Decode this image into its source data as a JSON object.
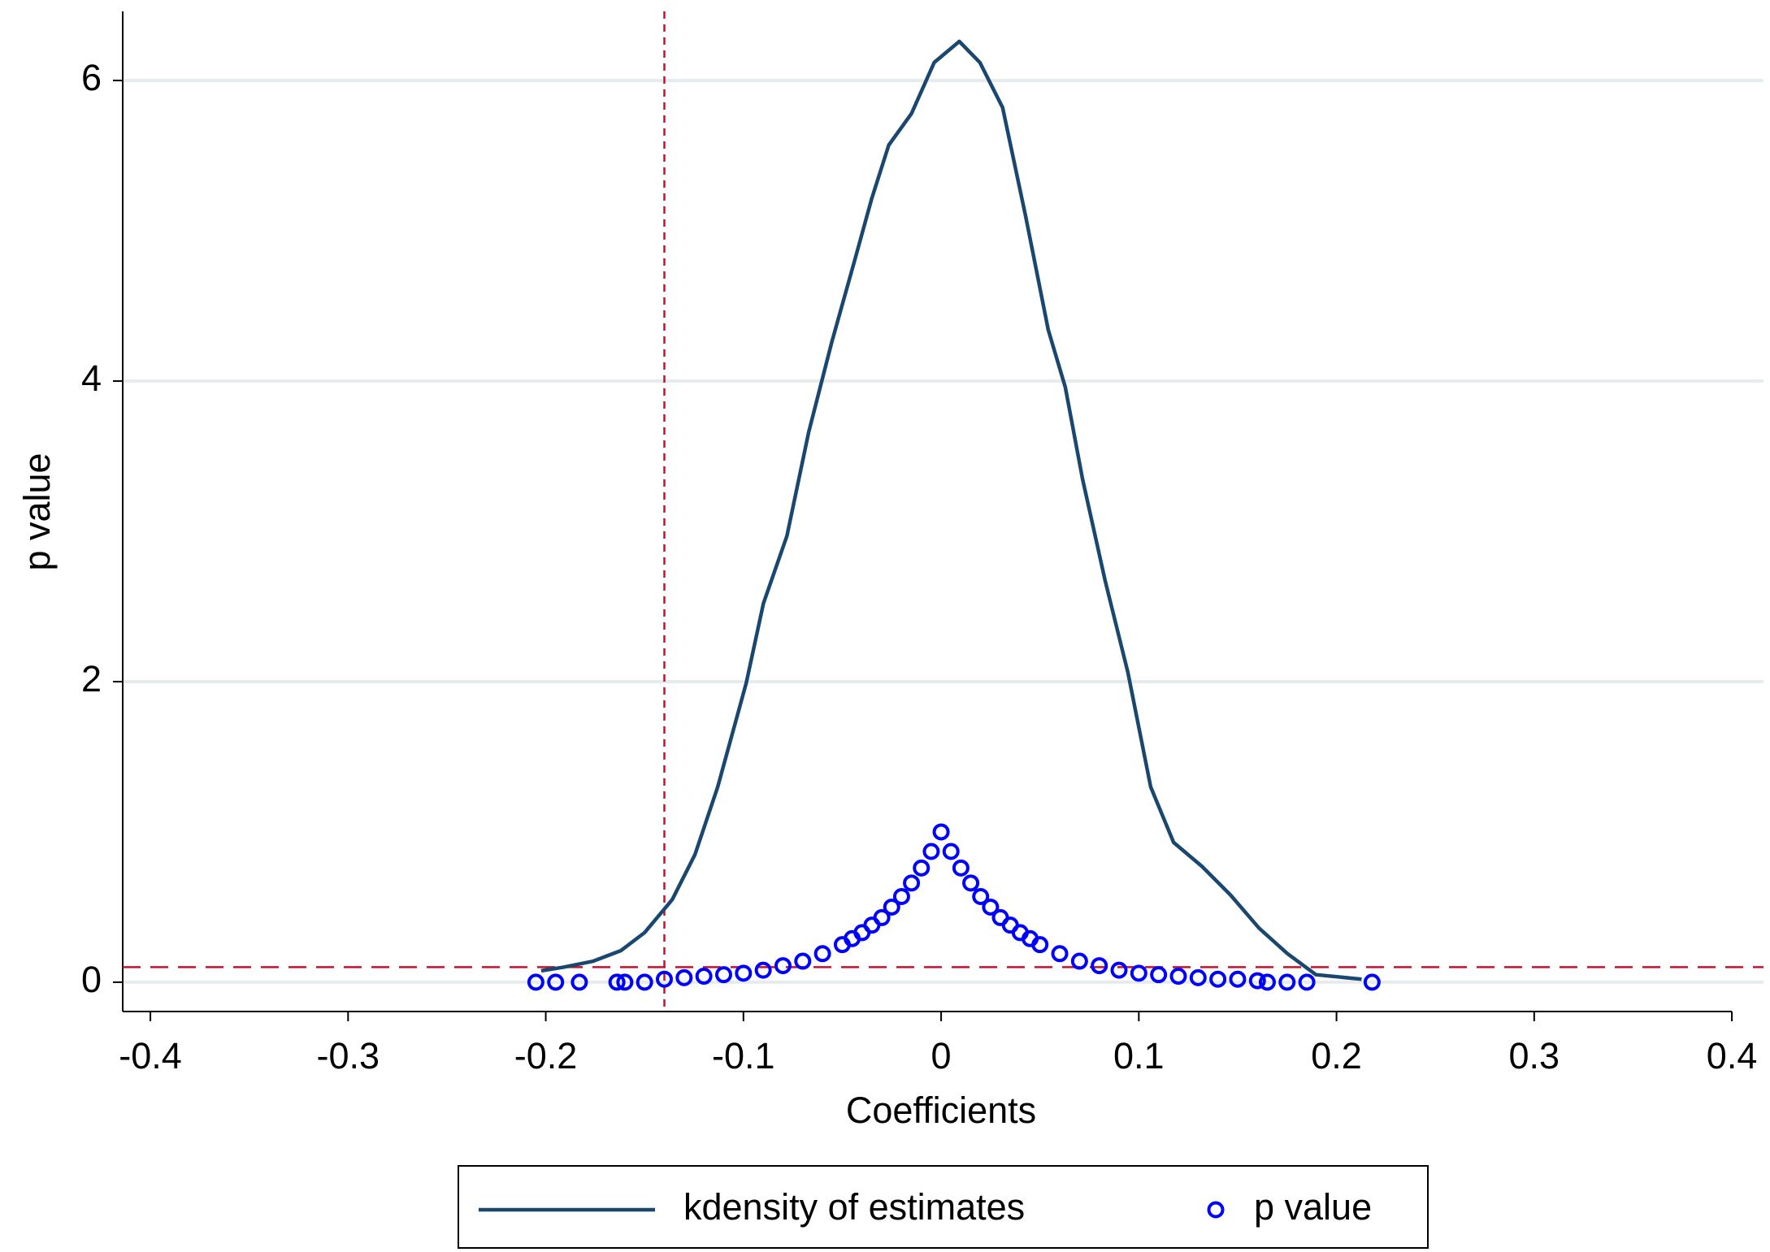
{
  "chart_data": {
    "type": "line",
    "x_label": "Coefficients",
    "y_label": "p value",
    "xlim": [
      -0.414,
      0.416
    ],
    "ylim": [
      -0.195,
      6.46
    ],
    "xticks": [
      -0.4,
      -0.3,
      -0.2,
      -0.1,
      0,
      0.1,
      0.2,
      0.3,
      0.4
    ],
    "yticks": [
      0,
      2,
      4,
      6
    ],
    "grid": true,
    "grid_color": "#e6ecee",
    "legend": "bottom",
    "reference_lines": [
      {
        "axis": "x",
        "value": -0.14,
        "color": "#c8102e"
      },
      {
        "axis": "y",
        "value": 0.1,
        "color": "#c8102e"
      }
    ],
    "series": [
      {
        "name": "kdensity of estimates",
        "type": "line",
        "color": "#1a476f",
        "x": [
          -0.2023,
          -0.191,
          -0.176,
          -0.162,
          -0.15,
          -0.136,
          -0.1245,
          -0.113,
          -0.0986,
          -0.0899,
          -0.078,
          -0.067,
          -0.0553,
          -0.0438,
          -0.0352,
          -0.0265,
          -0.015,
          -0.0035,
          0.0092,
          0.0196,
          0.0311,
          0.0427,
          0.0542,
          0.0628,
          0.0715,
          0.083,
          0.0945,
          0.106,
          0.1176,
          0.132,
          0.1464,
          0.1608,
          0.1752,
          0.1896,
          0.2127
        ],
        "values": [
          0.076,
          0.1,
          0.14,
          0.21,
          0.33,
          0.55,
          0.85,
          1.3,
          1.99,
          2.52,
          2.97,
          3.66,
          4.26,
          4.8,
          5.21,
          5.57,
          5.78,
          6.12,
          6.26,
          6.12,
          5.82,
          5.1,
          4.34,
          3.96,
          3.35,
          2.67,
          2.06,
          1.3,
          0.93,
          0.77,
          0.58,
          0.36,
          0.19,
          0.05,
          0.02
        ]
      },
      {
        "name": "p value",
        "type": "scatter",
        "color": "#0000ff",
        "x": [
          -0.205,
          -0.195,
          -0.183,
          -0.164,
          -0.16,
          -0.15,
          -0.14,
          -0.13,
          -0.12,
          -0.11,
          -0.1,
          -0.09,
          -0.08,
          -0.07,
          -0.06,
          -0.05,
          -0.045,
          -0.04,
          -0.035,
          -0.03,
          -0.025,
          -0.02,
          -0.015,
          -0.01,
          -0.005,
          0,
          0.005,
          0.01,
          0.015,
          0.02,
          0.025,
          0.03,
          0.035,
          0.04,
          0.045,
          0.05,
          0.06,
          0.07,
          0.08,
          0.09,
          0.1,
          0.11,
          0.12,
          0.13,
          0.14,
          0.15,
          0.16,
          0.165,
          0.175,
          0.185,
          0.218
        ],
        "values": [
          0,
          0,
          0,
          0,
          0,
          0,
          0.02,
          0.03,
          0.04,
          0.05,
          0.06,
          0.08,
          0.11,
          0.14,
          0.19,
          0.25,
          0.29,
          0.33,
          0.38,
          0.43,
          0.5,
          0.57,
          0.66,
          0.76,
          0.87,
          1,
          0.87,
          0.76,
          0.66,
          0.57,
          0.5,
          0.43,
          0.38,
          0.33,
          0.29,
          0.25,
          0.19,
          0.14,
          0.11,
          0.08,
          0.06,
          0.05,
          0.04,
          0.03,
          0.02,
          0.02,
          0.01,
          0,
          0,
          0,
          0
        ]
      }
    ]
  }
}
